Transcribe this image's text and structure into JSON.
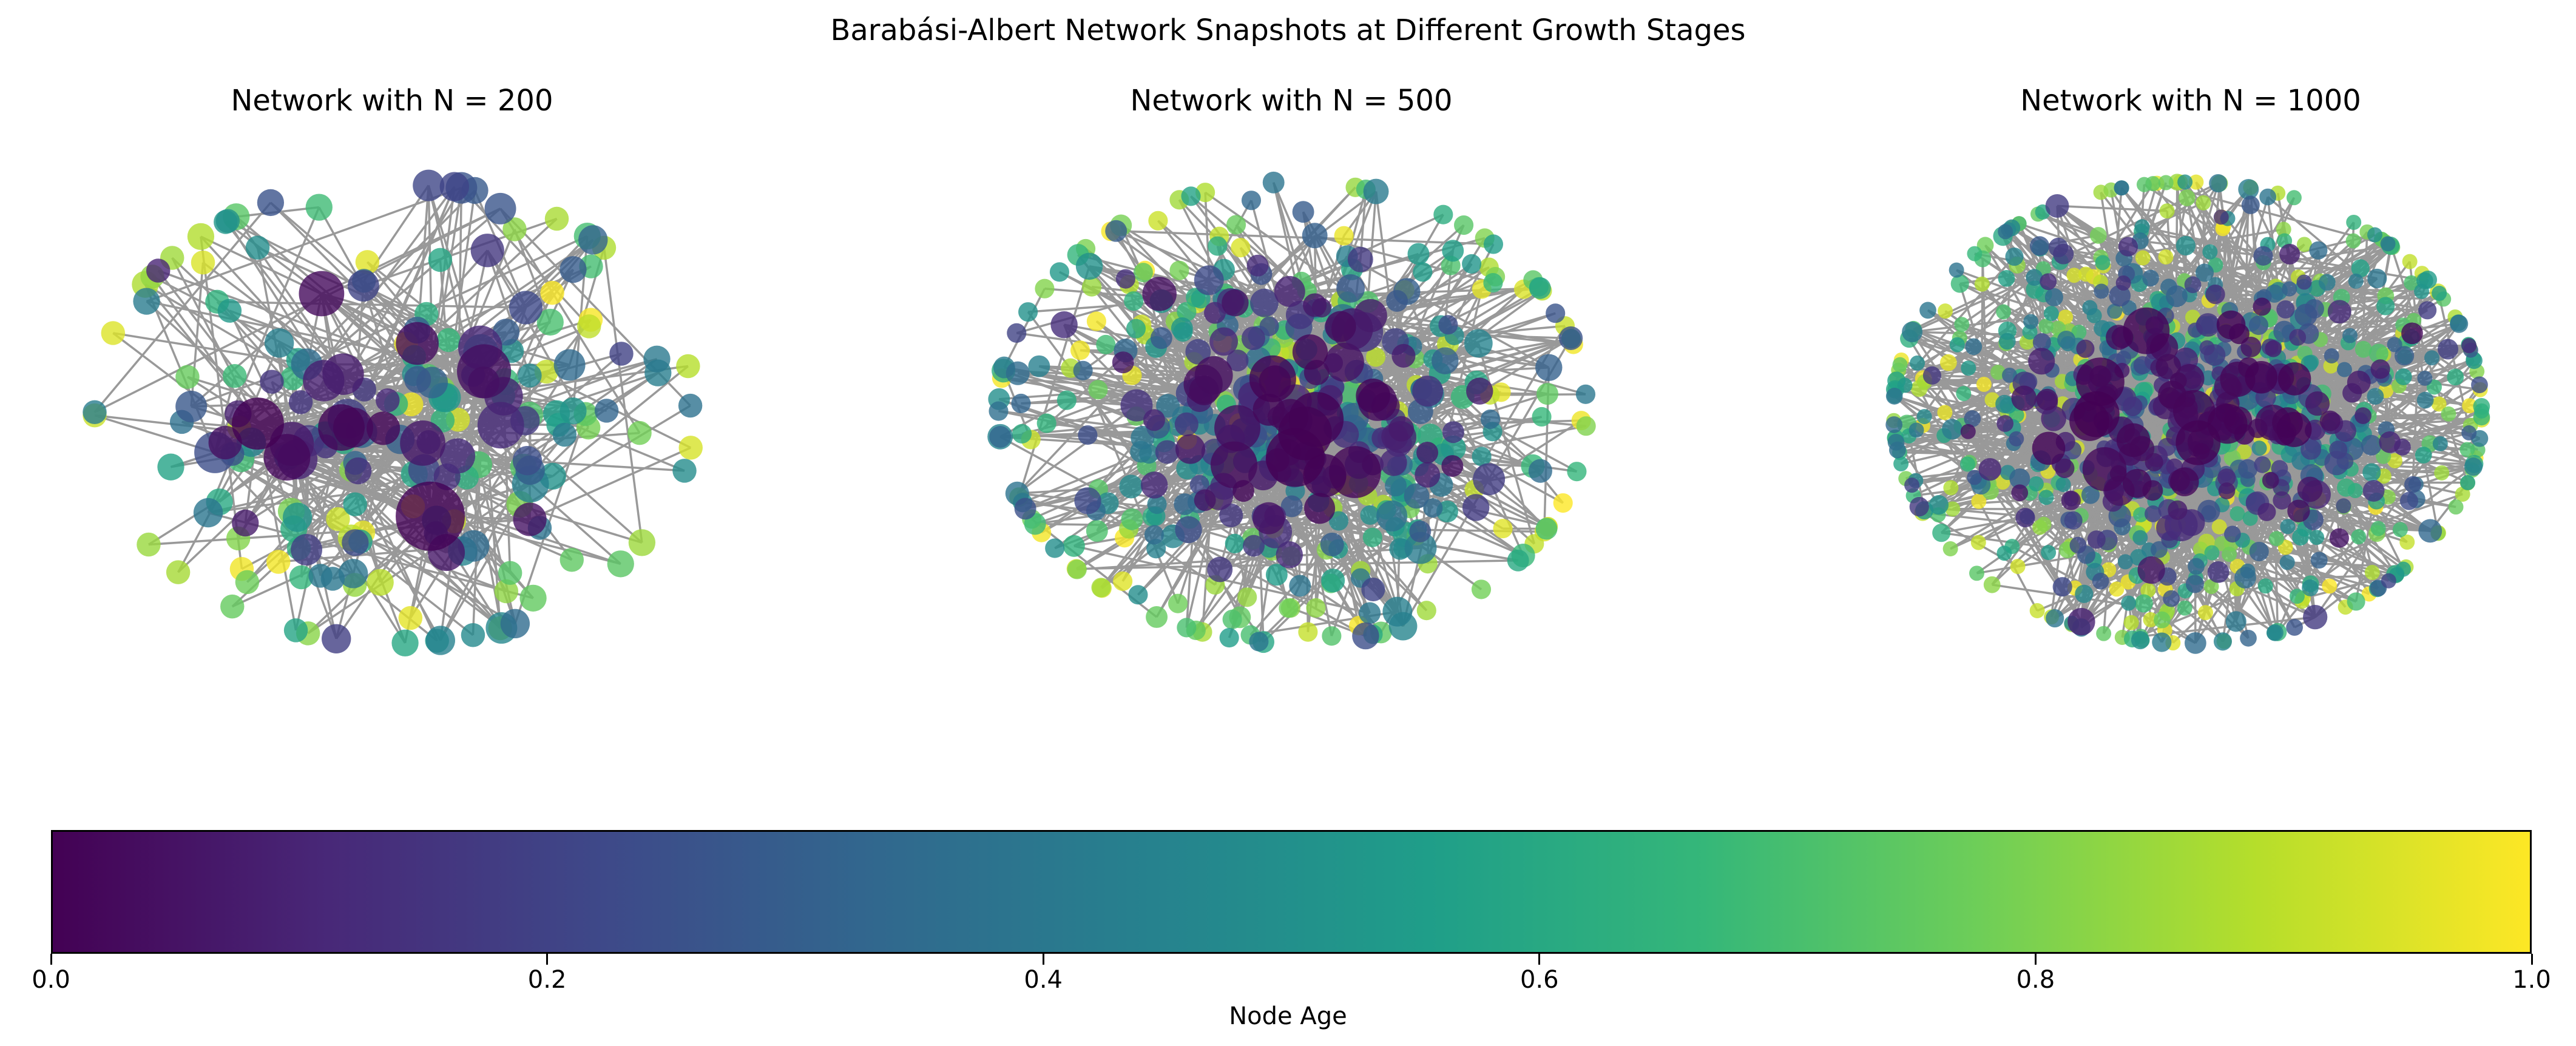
{
  "figure": {
    "title": "Barabási-Albert Network Snapshots at Different Growth Stages"
  },
  "panels": [
    {
      "title": "Network with N = 200",
      "n": 200
    },
    {
      "title": "Network with N = 500",
      "n": 500
    },
    {
      "title": "Network with N = 1000",
      "n": 1000
    }
  ],
  "colorbar": {
    "label": "Node Age",
    "ticks": [
      "0.0",
      "0.2",
      "0.4",
      "0.6",
      "0.8",
      "1.0"
    ],
    "tick_values": [
      0.0,
      0.2,
      0.4,
      0.6,
      0.8,
      1.0
    ],
    "range": [
      0.0,
      1.0
    ],
    "colormap": "viridis",
    "colors": [
      "#440154",
      "#482878",
      "#3e4989",
      "#31688e",
      "#26828e",
      "#1f9e89",
      "#35b779",
      "#6ece58",
      "#b5de2b",
      "#fde725"
    ]
  },
  "style": {
    "edge_color": "#999999"
  }
}
